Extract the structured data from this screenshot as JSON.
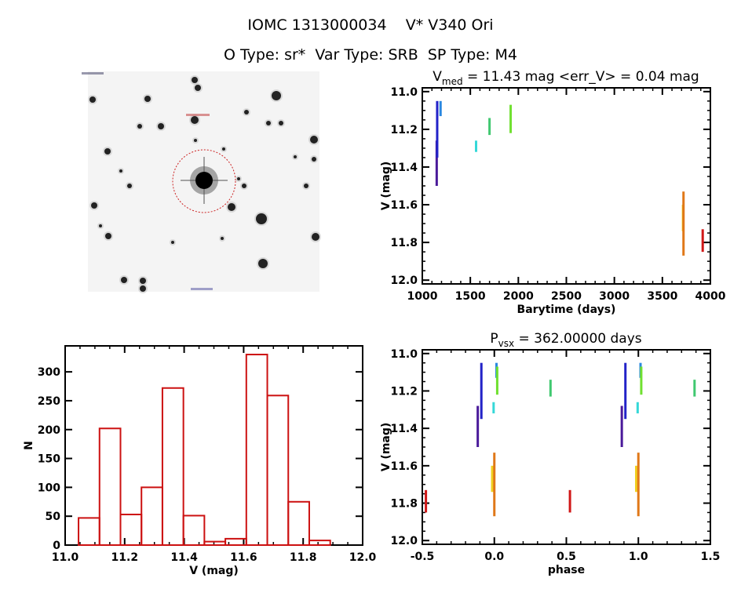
{
  "header": {
    "line1": "IOMC 1313000034    V* V340 Ori",
    "line2": "O Type: sr*  Var Type: SRB  SP Type: M4"
  },
  "finder_image": {
    "type": "star-field-image",
    "circle_color": "#cc2222"
  },
  "chart_data": [
    {
      "type": "scatter",
      "name": "light-curve",
      "title_main": "V",
      "title_sub": "med",
      "title_rest": " = 11.43 mag <err_V> = 0.04 mag",
      "xlabel": "Barytime (days)",
      "ylabel": "V (mag)",
      "xlim": [
        1000,
        4000
      ],
      "ylim": [
        12.02,
        10.98
      ],
      "xticks": [
        "1000",
        "1500",
        "2000",
        "2500",
        "3000",
        "3500",
        "4000"
      ],
      "yticks": [
        "11.0",
        "11.2",
        "11.4",
        "11.6",
        "11.8",
        "12.0"
      ],
      "clusters": [
        {
          "x": 1150,
          "vmin": 11.26,
          "vmax": 11.5,
          "color": "#4a1a9a"
        },
        {
          "x": 1155,
          "vmin": 11.05,
          "vmax": 11.35,
          "color": "#2222c8"
        },
        {
          "x": 1190,
          "vmin": 11.05,
          "vmax": 11.13,
          "color": "#2a88e0"
        },
        {
          "x": 1560,
          "vmin": 11.26,
          "vmax": 11.32,
          "color": "#35d8d8"
        },
        {
          "x": 1700,
          "vmin": 11.14,
          "vmax": 11.23,
          "color": "#40c870"
        },
        {
          "x": 1920,
          "vmin": 11.07,
          "vmax": 11.22,
          "color": "#70e030"
        },
        {
          "x": 3715,
          "vmin": 11.6,
          "vmax": 11.74,
          "color": "#f0d020"
        },
        {
          "x": 3720,
          "vmin": 11.53,
          "vmax": 11.87,
          "color": "#e07818"
        },
        {
          "x": 3920,
          "vmin": 11.73,
          "vmax": 11.85,
          "color": "#d01818"
        }
      ]
    },
    {
      "type": "bar",
      "name": "histogram",
      "xlabel": "V (mag)",
      "ylabel": "N",
      "xlim": [
        11.0,
        12.0
      ],
      "ylim": [
        0,
        345
      ],
      "xticks": [
        "11.0",
        "11.2",
        "11.4",
        "11.6",
        "11.8",
        "12.0"
      ],
      "yticks": [
        "0",
        "50",
        "100",
        "150",
        "200",
        "250",
        "300"
      ],
      "bin_start": 11.045,
      "bin_width": 0.0705,
      "values": [
        47,
        202,
        53,
        100,
        272,
        51,
        6,
        11,
        330,
        259,
        75,
        8
      ],
      "color": "#cc1111"
    },
    {
      "type": "scatter",
      "name": "phase-curve",
      "title_main": "P",
      "title_sub": "vsx",
      "title_rest": " = 362.00000 days",
      "xlabel": "phase",
      "ylabel": "V (mag)",
      "xlim": [
        -0.5,
        1.5
      ],
      "ylim": [
        12.02,
        10.98
      ],
      "xticks": [
        "-0.5",
        "0.0",
        "0.5",
        "1.0",
        "1.5"
      ],
      "yticks": [
        "11.0",
        "11.2",
        "11.4",
        "11.6",
        "11.8",
        "12.0"
      ],
      "clusters": [
        {
          "x": -0.115,
          "vmin": 11.28,
          "vmax": 11.5,
          "color": "#4a1a9a"
        },
        {
          "x": -0.09,
          "vmin": 11.05,
          "vmax": 11.35,
          "color": "#2222c8"
        },
        {
          "x": 0.015,
          "vmin": 11.05,
          "vmax": 11.13,
          "color": "#2a88e0"
        },
        {
          "x": -0.005,
          "vmin": 11.26,
          "vmax": 11.32,
          "color": "#35d8d8"
        },
        {
          "x": 0.02,
          "vmin": 11.07,
          "vmax": 11.22,
          "color": "#70e030"
        },
        {
          "x": 0.39,
          "vmin": 11.14,
          "vmax": 11.23,
          "color": "#40c870"
        },
        {
          "x": -0.015,
          "vmin": 11.6,
          "vmax": 11.74,
          "color": "#f0d020"
        },
        {
          "x": 0.0,
          "vmin": 11.53,
          "vmax": 11.87,
          "color": "#e07818"
        },
        {
          "x": 0.525,
          "vmin": 11.73,
          "vmax": 11.85,
          "color": "#d01818"
        }
      ]
    }
  ]
}
